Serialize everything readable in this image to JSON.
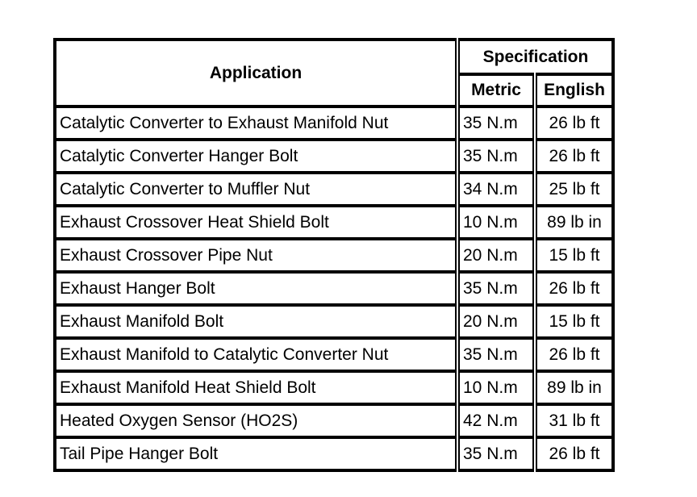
{
  "header": {
    "application": "Application",
    "specification": "Specification",
    "metric": "Metric",
    "english": "English"
  },
  "rows": [
    {
      "application": "Catalytic Converter to Exhaust Manifold Nut",
      "metric": "35 N.m",
      "english": "26 lb ft"
    },
    {
      "application": "Catalytic Converter Hanger Bolt",
      "metric": "35 N.m",
      "english": "26 lb ft"
    },
    {
      "application": "Catalytic Converter to Muffler Nut",
      "metric": "34 N.m",
      "english": "25 lb ft"
    },
    {
      "application": "Exhaust Crossover Heat Shield Bolt",
      "metric": "10 N.m",
      "english": "89 lb in"
    },
    {
      "application": "Exhaust Crossover Pipe Nut",
      "metric": "20 N.m",
      "english": "15 lb ft"
    },
    {
      "application": "Exhaust Hanger Bolt",
      "metric": "35 N.m",
      "english": "26 lb ft"
    },
    {
      "application": "Exhaust Manifold Bolt",
      "metric": "20 N.m",
      "english": "15 lb ft"
    },
    {
      "application": "Exhaust Manifold to Catalytic Converter Nut",
      "metric": "35 N.m",
      "english": "26 lb ft"
    },
    {
      "application": "Exhaust Manifold Heat Shield Bolt",
      "metric": "10 N.m",
      "english": "89 lb in"
    },
    {
      "application": "Heated Oxygen Sensor (HO2S)",
      "metric": "42 N.m",
      "english": "31 lb ft"
    },
    {
      "application": "Tail Pipe Hanger Bolt",
      "metric": "35 N.m",
      "english": "26 lb ft"
    }
  ]
}
